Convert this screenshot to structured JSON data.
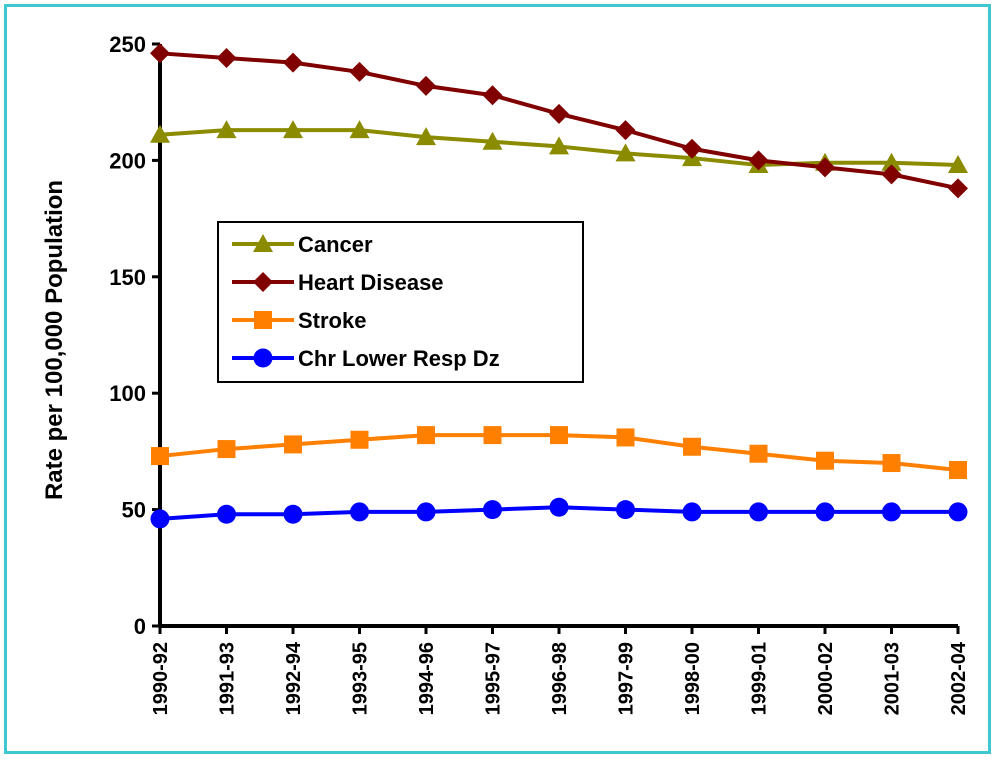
{
  "chart_data": {
    "type": "line",
    "title": "",
    "xlabel": "",
    "ylabel": "Rate per 100,000 Population",
    "ylim": [
      0,
      250
    ],
    "yticks": [
      0,
      50,
      100,
      150,
      200,
      250
    ],
    "grid": false,
    "legend_position": "left-center",
    "categories": [
      "1990-92",
      "1991-93",
      "1992-94",
      "1993-95",
      "1994-96",
      "1995-97",
      "1996-98",
      "1997-99",
      "1998-00",
      "1999-01",
      "2000-02",
      "2001-03",
      "2002-04"
    ],
    "series": [
      {
        "name": "Cancer",
        "color": "#8b8b00",
        "marker": "triangle",
        "values": [
          211,
          213,
          213,
          213,
          210,
          208,
          206,
          203,
          201,
          198,
          199,
          199,
          198
        ]
      },
      {
        "name": "Heart Disease",
        "color": "#800000",
        "marker": "diamond",
        "values": [
          246,
          244,
          242,
          238,
          232,
          228,
          220,
          213,
          205,
          200,
          197,
          194,
          188
        ]
      },
      {
        "name": "Stroke",
        "color": "#ff7f00",
        "marker": "square",
        "values": [
          73,
          76,
          78,
          80,
          82,
          82,
          82,
          81,
          77,
          74,
          71,
          70,
          67
        ]
      },
      {
        "name": "Chr Lower Resp Dz",
        "color": "#0000ff",
        "marker": "circle",
        "values": [
          46,
          48,
          48,
          49,
          49,
          50,
          51,
          50,
          49,
          49,
          49,
          49,
          49
        ]
      }
    ]
  }
}
